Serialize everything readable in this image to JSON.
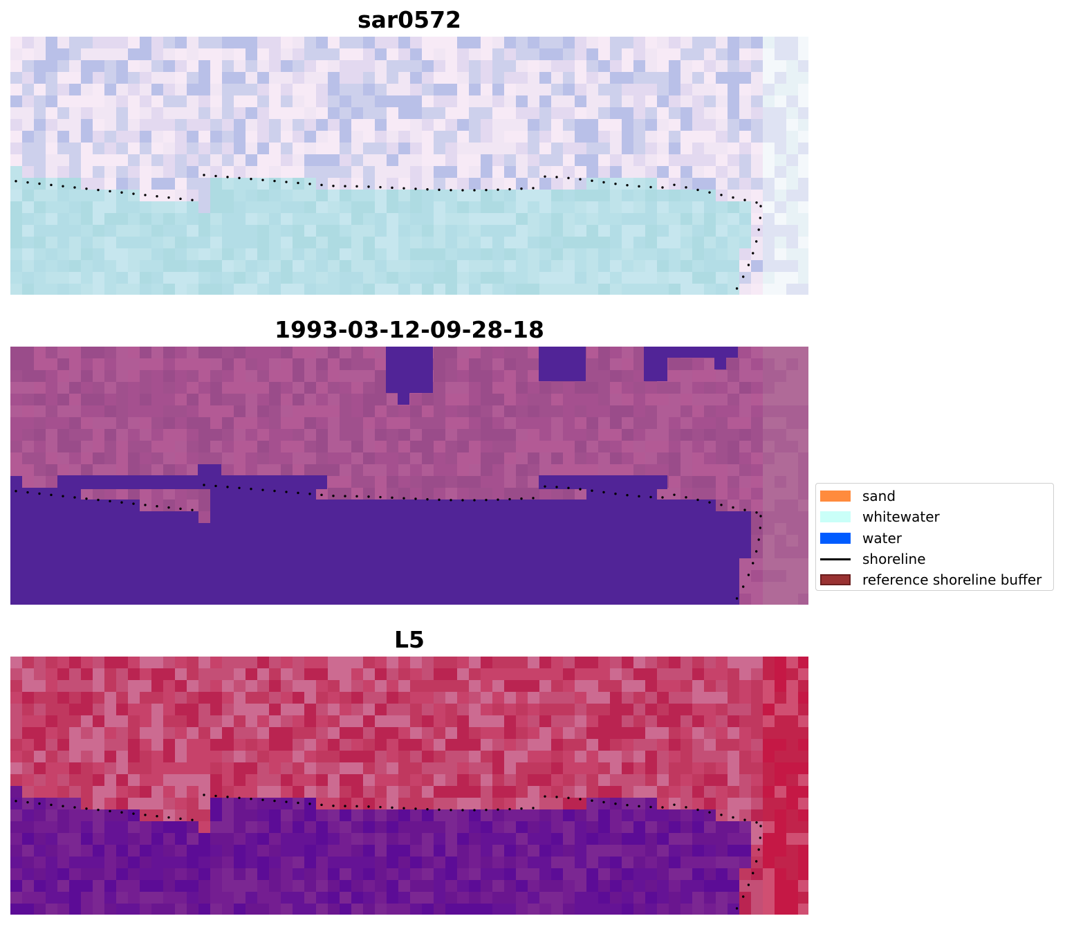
{
  "panels": [
    {
      "title": "sar0572",
      "palette": {
        "sky": [
          "#f7eaf6",
          "#e3d9f0",
          "#cdd0ec",
          "#b9c0e8",
          "#f1e6f4"
        ],
        "sea": [
          "#bfe3ea",
          "#b3dde6",
          "#c6e6ee",
          "#aedbe2",
          "#b8e0e8"
        ],
        "edge": [
          "#e8f2f6",
          "#f4f8fb",
          "#dfe3f3"
        ]
      }
    },
    {
      "title": "1993-03-12-09-28-18",
      "palette": {
        "sky": [
          "#b35a95",
          "#a5508f",
          "#9a4c8a",
          "#b05c96",
          "#a0508d"
        ],
        "sea": [
          "#512497"
        ],
        "edge": [
          "#b06a98",
          "#a85f93"
        ]
      }
    },
    {
      "title": "L5",
      "palette": {
        "sky": [
          "#c0385f",
          "#c7426a",
          "#ba2451",
          "#c44f76",
          "#cc6b91"
        ],
        "sea": [
          "#6a168f",
          "#5c0c96",
          "#741e91",
          "#651395",
          "#7b2792"
        ],
        "edge": [
          "#c51845",
          "#c1234b",
          "#d04f72"
        ]
      }
    }
  ],
  "legend": {
    "items": [
      {
        "label": "sand",
        "type": "patch",
        "color": "#ff8b3d"
      },
      {
        "label": "whitewater",
        "type": "patch",
        "color": "#cafff8"
      },
      {
        "label": "water",
        "type": "patch",
        "color": "#005cff"
      },
      {
        "label": "shoreline",
        "type": "line",
        "color": "#000000"
      },
      {
        "label": "reference shoreline buffer",
        "type": "patch",
        "color": "#993232",
        "edge": "#6a1e1e"
      }
    ]
  }
}
